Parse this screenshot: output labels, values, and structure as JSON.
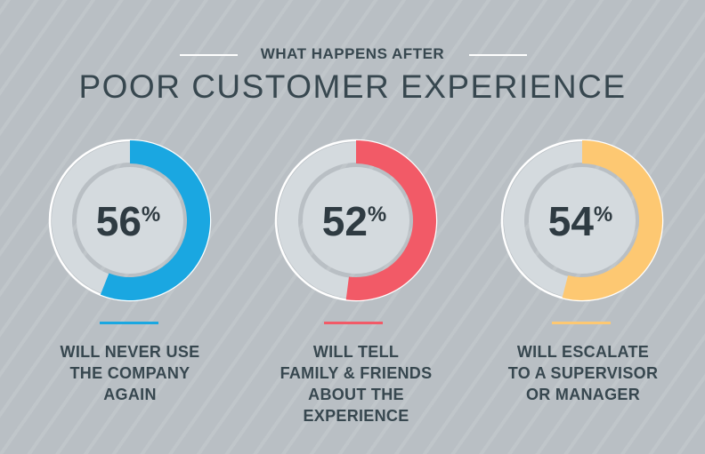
{
  "header": {
    "eyebrow": "WHAT HAPPENS AFTER",
    "title": "POOR CUSTOMER EXPERIENCE"
  },
  "chart_data": {
    "type": "pie",
    "unit": "%",
    "items": [
      {
        "value": 56,
        "color": "#1aa7e1",
        "label_lines": [
          "WILL NEVER USE",
          "THE COMPANY",
          "AGAIN"
        ]
      },
      {
        "value": 52,
        "color": "#f25a67",
        "label_lines": [
          "WILL TELL",
          "FAMILY & FRIENDS",
          "ABOUT THE",
          "EXPERIENCE"
        ]
      },
      {
        "value": 54,
        "color": "#fdc872",
        "label_lines": [
          "WILL ESCALATE",
          "TO A SUPERVISOR",
          "OR MANAGER"
        ]
      }
    ]
  },
  "colors": {
    "background": "#b9bfc4",
    "ring_track": "#d4dade",
    "inner_disc": "#d4dade",
    "ring_outline": "#ffffff",
    "text": "#37474f"
  }
}
